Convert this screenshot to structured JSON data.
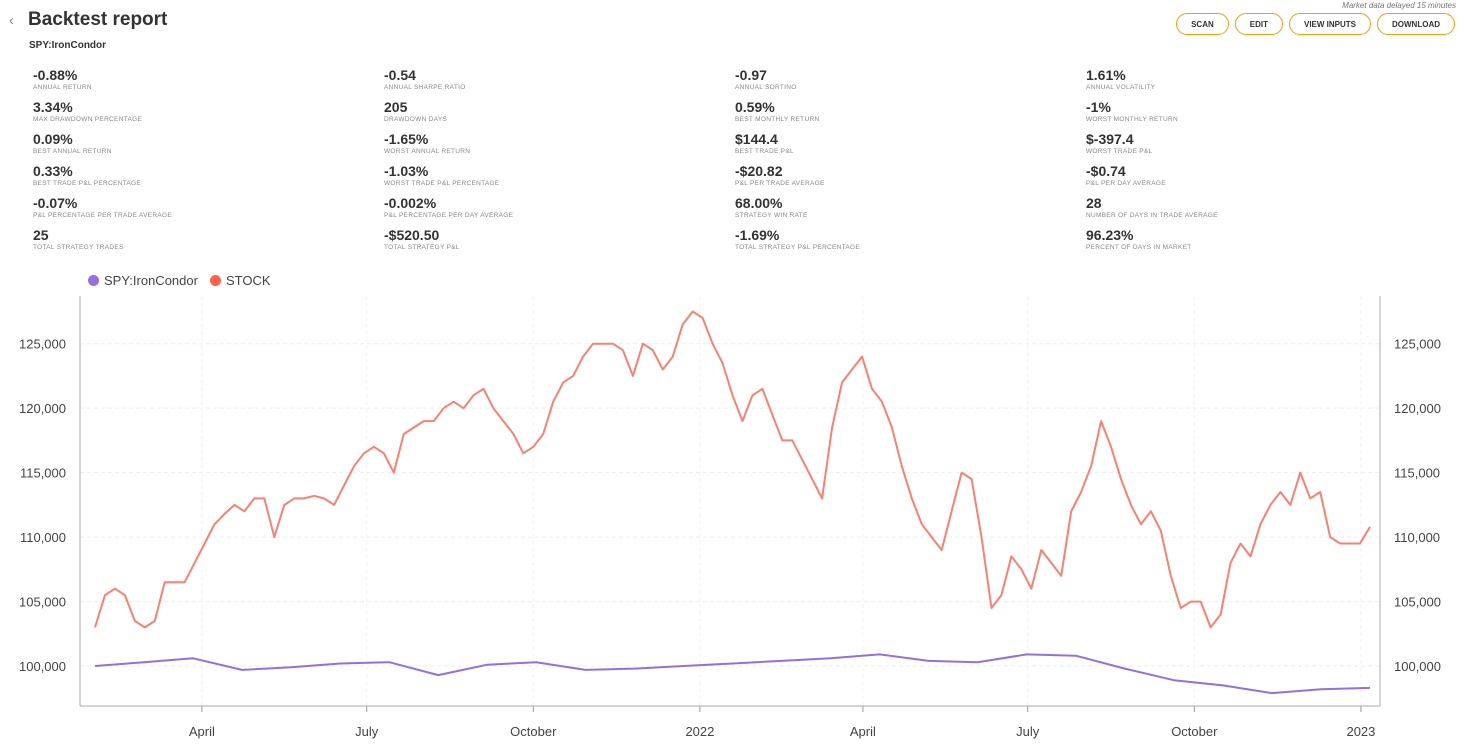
{
  "header": {
    "back_icon": "chevron-left-icon",
    "title": "Backtest report",
    "subtitle": "SPY:IronCondor",
    "delay_note": "Market data delayed 15 minutes"
  },
  "buttons": [
    "SCAN",
    "EDIT",
    "VIEW INPUTS",
    "DOWNLOAD"
  ],
  "stats": [
    {
      "value": "-0.88%",
      "label": "Annual return"
    },
    {
      "value": "-0.54",
      "label": "Annual sharpe ratio"
    },
    {
      "value": "-0.97",
      "label": "Annual sortino"
    },
    {
      "value": "1.61%",
      "label": "Annual volatility"
    },
    {
      "value": "3.34%",
      "label": "Max drawdown percentage"
    },
    {
      "value": "205",
      "label": "Drawdown days"
    },
    {
      "value": "0.59%",
      "label": "Best monthly return"
    },
    {
      "value": "-1%",
      "label": "Worst monthly return"
    },
    {
      "value": "0.09%",
      "label": "Best annual return"
    },
    {
      "value": "-1.65%",
      "label": "Worst annual return"
    },
    {
      "value": "$144.4",
      "label": "Best trade P&L"
    },
    {
      "value": "$-397.4",
      "label": "Worst trade P&L"
    },
    {
      "value": "0.33%",
      "label": "Best trade P&L percentage"
    },
    {
      "value": "-1.03%",
      "label": "Worst trade P&L percentage"
    },
    {
      "value": "-$20.82",
      "label": "P&L per trade average"
    },
    {
      "value": "-$0.74",
      "label": "P&L per day average"
    },
    {
      "value": "-0.07%",
      "label": "P&L percentage per trade average"
    },
    {
      "value": "-0.002%",
      "label": "P&L percentage per day average"
    },
    {
      "value": "68.00%",
      "label": "Strategy win rate"
    },
    {
      "value": "28",
      "label": "Number of days in trade average"
    },
    {
      "value": "25",
      "label": "Total strategy trades"
    },
    {
      "value": "-$520.50",
      "label": "Total strategy P&L"
    },
    {
      "value": "-1.69%",
      "label": "Total strategy P&L percentage"
    },
    {
      "value": "96.23%",
      "label": "Percent of days in market"
    }
  ],
  "chart_data": {
    "type": "line",
    "start_date": "2021-02-01",
    "end_date": "2023-01-06",
    "ylim": [
      96900,
      128700
    ],
    "yticks": [
      100000,
      105000,
      110000,
      115000,
      120000,
      125000
    ],
    "ytick_labels": [
      "100,000",
      "105,000",
      "110,000",
      "115,000",
      "120,000",
      "125,000"
    ],
    "xticks": [
      {
        "date": "2021-04-01",
        "label": "April"
      },
      {
        "date": "2021-07-01",
        "label": "July"
      },
      {
        "date": "2021-10-01",
        "label": "October"
      },
      {
        "date": "2022-01-01",
        "label": "2022"
      },
      {
        "date": "2022-04-01",
        "label": "April"
      },
      {
        "date": "2022-07-01",
        "label": "July"
      },
      {
        "date": "2022-10-01",
        "label": "October"
      },
      {
        "date": "2023-01-01",
        "label": "2023"
      }
    ],
    "legend": "top-left",
    "series": [
      {
        "name": "SPY:IronCondor",
        "color": "#9370db",
        "values": [
          100000,
          100300,
          100600,
          99700,
          99900,
          100200,
          100300,
          99300,
          100100,
          100300,
          99700,
          99800,
          100000,
          100200,
          100400,
          100600,
          100900,
          100400,
          100300,
          100900,
          100800,
          99800,
          98900,
          98500,
          97900,
          98200,
          98300
        ]
      },
      {
        "name": "STOCK",
        "color": "#fa8072",
        "legend_color": "#ff6347",
        "values": [
          103000,
          105500,
          106000,
          105500,
          103500,
          103000,
          103500,
          106500,
          106500,
          106500,
          108000,
          109500,
          111000,
          111800,
          112500,
          112000,
          113000,
          113000,
          110000,
          112500,
          113000,
          113000,
          113200,
          113000,
          112500,
          114000,
          115500,
          116500,
          117000,
          116500,
          115000,
          118000,
          118500,
          119000,
          119000,
          120000,
          120500,
          120000,
          121000,
          121500,
          120000,
          119000,
          118000,
          116500,
          117000,
          118000,
          120500,
          122000,
          122500,
          124000,
          125000,
          125000,
          125000,
          124500,
          122500,
          125000,
          124500,
          123000,
          124000,
          126500,
          127500,
          127000,
          125000,
          123500,
          121000,
          119000,
          121000,
          121500,
          119500,
          117500,
          117500,
          116000,
          114500,
          113000,
          118500,
          122000,
          123000,
          124000,
          121500,
          120500,
          118500,
          115500,
          113000,
          111000,
          110000,
          109000,
          112000,
          115000,
          114500,
          110000,
          104500,
          105500,
          108500,
          107500,
          106000,
          109000,
          108000,
          107000,
          112000,
          113500,
          115500,
          119000,
          117000,
          114500,
          112500,
          111000,
          112000,
          110500,
          107000,
          104500,
          105000,
          105000,
          103000,
          104000,
          108000,
          109500,
          108500,
          111000,
          112500,
          113500,
          112500,
          115000,
          113000,
          113500,
          110000,
          109500,
          109500,
          109500,
          110800
        ]
      }
    ]
  }
}
